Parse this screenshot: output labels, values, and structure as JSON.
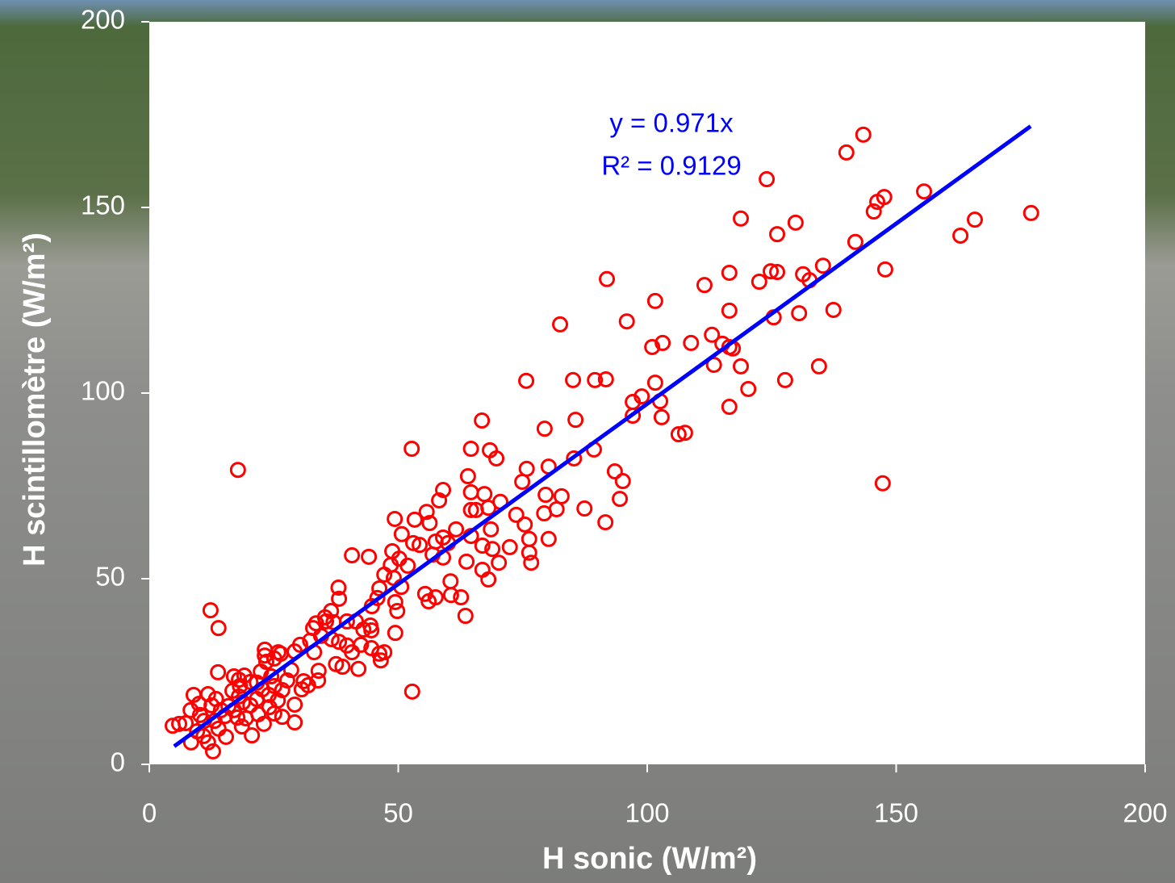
{
  "chart_data": {
    "type": "scatter",
    "x_label": "H sonic (W/m²)",
    "y_label": "H scintillomètre (W/m²)",
    "annotations": [
      "y = 0.971x",
      "R² = 0.9129"
    ],
    "xlim": [
      0,
      200
    ],
    "ylim": [
      0,
      200
    ],
    "xticks": [
      0,
      50,
      100,
      150,
      200
    ],
    "yticks": [
      0,
      50,
      100,
      150,
      200
    ],
    "points": {
      "color": "#ff0000",
      "x": [
        177.1,
        165.8,
        162.9,
        155.6,
        147.6,
        146.2,
        145.5,
        147.8,
        147.3,
        143.4,
        140.0,
        141.8,
        137.4,
        135.3,
        134.5,
        131.3,
        132.6,
        130.5,
        129.8,
        127.7,
        126.1,
        124.0,
        124.8,
        126.1,
        125.4,
        122.5,
        118.8,
        116.5,
        116.5,
        116.5,
        117.2,
        118.8,
        120.3,
        116.5,
        115.1,
        113.0,
        113.4,
        111.5,
        108.8,
        107.6,
        106.3,
        103.1,
        101.0,
        101.6,
        101.6,
        102.6,
        102.9,
        98.9,
        97.1,
        97.1,
        95.9,
        91.9,
        91.7,
        89.5,
        85.1,
        82.5,
        85.6,
        85.3,
        89.3,
        87.4,
        93.5,
        95.1,
        94.5,
        91.6,
        75.7,
        79.4,
        66.8,
        68.4,
        69.7,
        64.6,
        52.7,
        80.2,
        75.8,
        74.9,
        82.8,
        79.6,
        81.8,
        79.3,
        80.2,
        76.3,
        76.3,
        76.7,
        73.7,
        75.4,
        70.5,
        68.1,
        67.3,
        65.6,
        72.4,
        70.2,
        68.6,
        66.9,
        68.9,
        68.1,
        66.9,
        64.6,
        64.6,
        64.0,
        59.0,
        58.2,
        55.7,
        56.3,
        61.6,
        64.6,
        63.7,
        63.5,
        60.5,
        60.6,
        62.6,
        57.5,
        56.1,
        55.4,
        52.8,
        49.3,
        50.7,
        53.0,
        54.3,
        53.3,
        59.0,
        57.5,
        56.9,
        59.0,
        60.0,
        48.8,
        48.5,
        50.2,
        51.9,
        47.2,
        49.1,
        46.2,
        50.6,
        49.4,
        45.8,
        44.7,
        49.8,
        49.4,
        44.1,
        40.7,
        38.0,
        38.1,
        36.5,
        37.0,
        35.3,
        33.5,
        34.5,
        36.6,
        38.1,
        39.7,
        40.7,
        42.0,
        43.0,
        44.4,
        44.6,
        44.6,
        42.5,
        46.2,
        46.5,
        47.2,
        41.5,
        39.7,
        37.5,
        38.8,
        35.5,
        32.9,
        32.3,
        33.1,
        34.0,
        33.9,
        30.3,
        29.2,
        31.0,
        30.6,
        31.9,
        28.5,
        27.7,
        26.7,
        23.2,
        23.2,
        23.5,
        25.9,
        25.1,
        26.4,
        22.4,
        21.6,
        22.7,
        24.5,
        25.1,
        24.0,
        19.1,
        20.3,
        18.2,
        17.0,
        18.0,
        13.8,
        16.7,
        18.0,
        18.8,
        21.6,
        20.3,
        21.9,
        24.1,
        25.1,
        25.8,
        29.2,
        26.7,
        29.2,
        23.0,
        20.6,
        17.8,
        12.3,
        13.9,
        11.8,
        12.5,
        13.4,
        14.4,
        15.2,
        15.9,
        17.0,
        17.7,
        13.1,
        13.9,
        11.0,
        10.2,
        8.9,
        8.3,
        10.0,
        9.6,
        7.3,
        6.0,
        4.7,
        8.4,
        10.9,
        12.8,
        15.4,
        11.8,
        19.4,
        18.6
      ],
      "y": [
        148.5,
        146.7,
        142.4,
        154.3,
        152.8,
        151.5,
        148.9,
        133.3,
        75.7,
        169.6,
        164.8,
        140.7,
        122.4,
        134.3,
        107.2,
        132.0,
        130.4,
        121.5,
        145.9,
        103.5,
        142.8,
        157.6,
        132.8,
        132.6,
        120.4,
        130.0,
        147.0,
        132.4,
        122.2,
        112.4,
        112.0,
        107.2,
        101.1,
        96.3,
        113.3,
        115.7,
        107.6,
        129.1,
        113.5,
        89.3,
        88.9,
        113.5,
        112.4,
        124.8,
        102.8,
        97.8,
        93.5,
        99.1,
        97.6,
        93.9,
        119.3,
        130.7,
        103.7,
        103.5,
        103.5,
        118.5,
        92.8,
        82.4,
        84.8,
        68.9,
        78.9,
        76.3,
        71.5,
        65.2,
        103.3,
        90.4,
        92.6,
        84.6,
        82.4,
        85.0,
        85.0,
        80.2,
        79.6,
        76.1,
        72.2,
        72.6,
        68.7,
        67.6,
        60.7,
        60.7,
        57.0,
        54.3,
        67.2,
        64.6,
        70.7,
        69.1,
        72.8,
        68.5,
        58.5,
        54.3,
        63.3,
        58.9,
        58.0,
        49.8,
        52.4,
        73.3,
        68.5,
        77.6,
        73.9,
        71.1,
        68.0,
        65.0,
        63.3,
        61.5,
        54.6,
        40.0,
        49.3,
        45.6,
        45.0,
        45.0,
        43.9,
        45.9,
        19.6,
        66.1,
        62.0,
        59.6,
        59.1,
        65.9,
        61.1,
        60.0,
        56.5,
        55.7,
        59.6,
        57.4,
        53.7,
        55.4,
        53.5,
        51.1,
        50.2,
        47.4,
        47.8,
        43.7,
        44.8,
        42.6,
        41.3,
        35.4,
        55.9,
        56.3,
        47.6,
        44.6,
        41.3,
        38.3,
        39.6,
        38.0,
        34.6,
        33.7,
        33.0,
        32.0,
        30.2,
        25.7,
        36.3,
        37.4,
        36.1,
        31.3,
        32.2,
        29.8,
        28.0,
        30.2,
        38.5,
        38.5,
        27.0,
        26.3,
        38.5,
        36.7,
        33.3,
        30.2,
        25.2,
        22.6,
        32.2,
        30.4,
        22.4,
        20.2,
        21.3,
        25.4,
        22.6,
        20.0,
        30.9,
        29.3,
        27.6,
        30.2,
        28.5,
        29.8,
        25.0,
        22.0,
        20.2,
        23.7,
        21.1,
        18.7,
        23.9,
        22.2,
        21.1,
        23.7,
        22.8,
        24.8,
        19.8,
        18.3,
        16.7,
        17.6,
        15.9,
        13.5,
        15.4,
        13.7,
        17.2,
        16.1,
        12.8,
        11.3,
        10.9,
        7.8,
        79.3,
        41.5,
        36.7,
        18.9,
        15.9,
        17.6,
        14.6,
        13.0,
        15.7,
        14.6,
        12.6,
        11.7,
        9.6,
        11.7,
        13.3,
        18.7,
        14.6,
        16.3,
        8.9,
        11.1,
        10.9,
        10.4,
        5.9,
        7.6,
        3.5,
        7.4,
        5.9,
        12.4,
        10.2
      ]
    },
    "trendline": {
      "color": "#0000ff",
      "x": [
        5,
        177
      ],
      "y": [
        4.86,
        171.87
      ]
    }
  }
}
